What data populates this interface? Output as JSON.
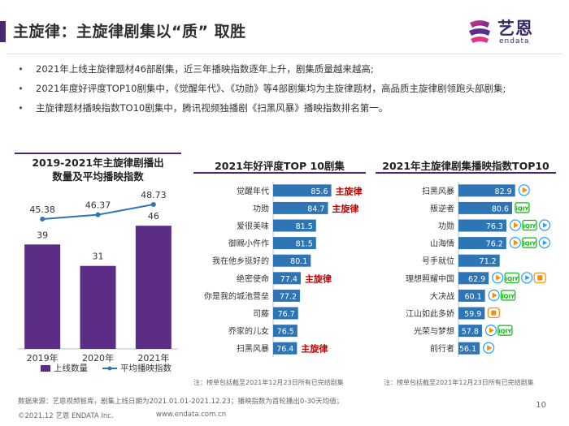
{
  "header": {
    "title": "主旋律：主旋律剧集以“质” 取胜",
    "logo_cn": "艺恩",
    "logo_en": "endata"
  },
  "bullets": [
    "2021年上线主旋律题材46部剧集，近三年播映指数逐年上升，剧集质量越来越高;",
    "2021年度好评度TOP10剧集中，《觉醒年代》、《功勋》等4部剧集均为主旋律题材，高品质主旋律剧领跑头部剧集;",
    "主旋律题材播映指数TO10剧集中，腾讯视频独播剧《扫黑风暴》播映指数排名第一。"
  ],
  "charts": {
    "left_title_1": "2019-2021年主旋律剧播出",
    "left_title_2": "数量及平均播映指数",
    "mid_title": "2021年好评度TOP 10剧集",
    "right_title": "2021年主旋律剧集播映指数TOP10",
    "mid_note": "注：榜单包括截至2021年12月23日所有已完结剧集",
    "right_note": "注：榜单包括截至2021年12月23日所有已完结剧集"
  },
  "chart_data": [
    {
      "type": "bar",
      "categories": [
        "2019年",
        "2020年",
        "2021年"
      ],
      "series": [
        {
          "name": "上线数量",
          "type": "bar",
          "values": [
            39,
            31,
            46
          ],
          "color": "#5b2d86"
        },
        {
          "name": "平均播映指数",
          "type": "line",
          "values": [
            45.38,
            46.37,
            48.73
          ],
          "color": "#2e75b6"
        }
      ],
      "bar_labels": [
        "39",
        "31",
        "46"
      ],
      "line_labels": [
        "45.38",
        "46.37",
        "48.73"
      ],
      "legend": "bottom"
    },
    {
      "type": "bar",
      "orientation": "horizontal",
      "categories": [
        "觉醒年代",
        "功勋",
        "爱很美味",
        "御赐小仵作",
        "我在他乡挺好的",
        "绝密使命",
        "你是我的城池营垒",
        "司藤",
        "乔家的儿女",
        "扫黑风暴"
      ],
      "values": [
        85.6,
        84.7,
        81.5,
        81.5,
        80.1,
        77.4,
        77.2,
        76.7,
        76.5,
        76.4
      ],
      "tags": [
        "主旋律",
        "主旋律",
        "",
        "",
        "",
        "主旋律",
        "",
        "",
        "",
        "主旋律"
      ],
      "color": "#2e75b6",
      "tag_color": "#c00000"
    },
    {
      "type": "bar",
      "orientation": "horizontal",
      "categories": [
        "扫黑风暴",
        "叛逆者",
        "功勋",
        "山海情",
        "号手就位",
        "理想照耀中国",
        "大决战",
        "江山如此多娇",
        "光荣与梦想",
        "前行者"
      ],
      "values": [
        82.9,
        80.6,
        76.3,
        76.2,
        71.2,
        62.9,
        60.1,
        59.9,
        57.8,
        56.1
      ],
      "platforms": [
        [
          "tencent"
        ],
        [
          "iqiyi"
        ],
        [
          "tencent",
          "iqiyi",
          "youku"
        ],
        [
          "tencent",
          "iqiyi",
          "youku"
        ],
        [],
        [
          "tencent",
          "iqiyi",
          "youku",
          "mango"
        ],
        [
          "tencent",
          "iqiyi"
        ],
        [
          "mango"
        ],
        [
          "tencent",
          "iqiyi"
        ],
        [
          "tencent"
        ]
      ],
      "color": "#2e75b6"
    }
  ],
  "footer": {
    "source": "数据来源：艺恩视频智库，剧集上线日期为2021.01.01-2021.12.23；播映指数为首轮播出0-30天均值；",
    "copyright": "©2021.12 艺恩 ENDATA Inc.",
    "url": "www.endata.com.cn",
    "page": "10"
  }
}
